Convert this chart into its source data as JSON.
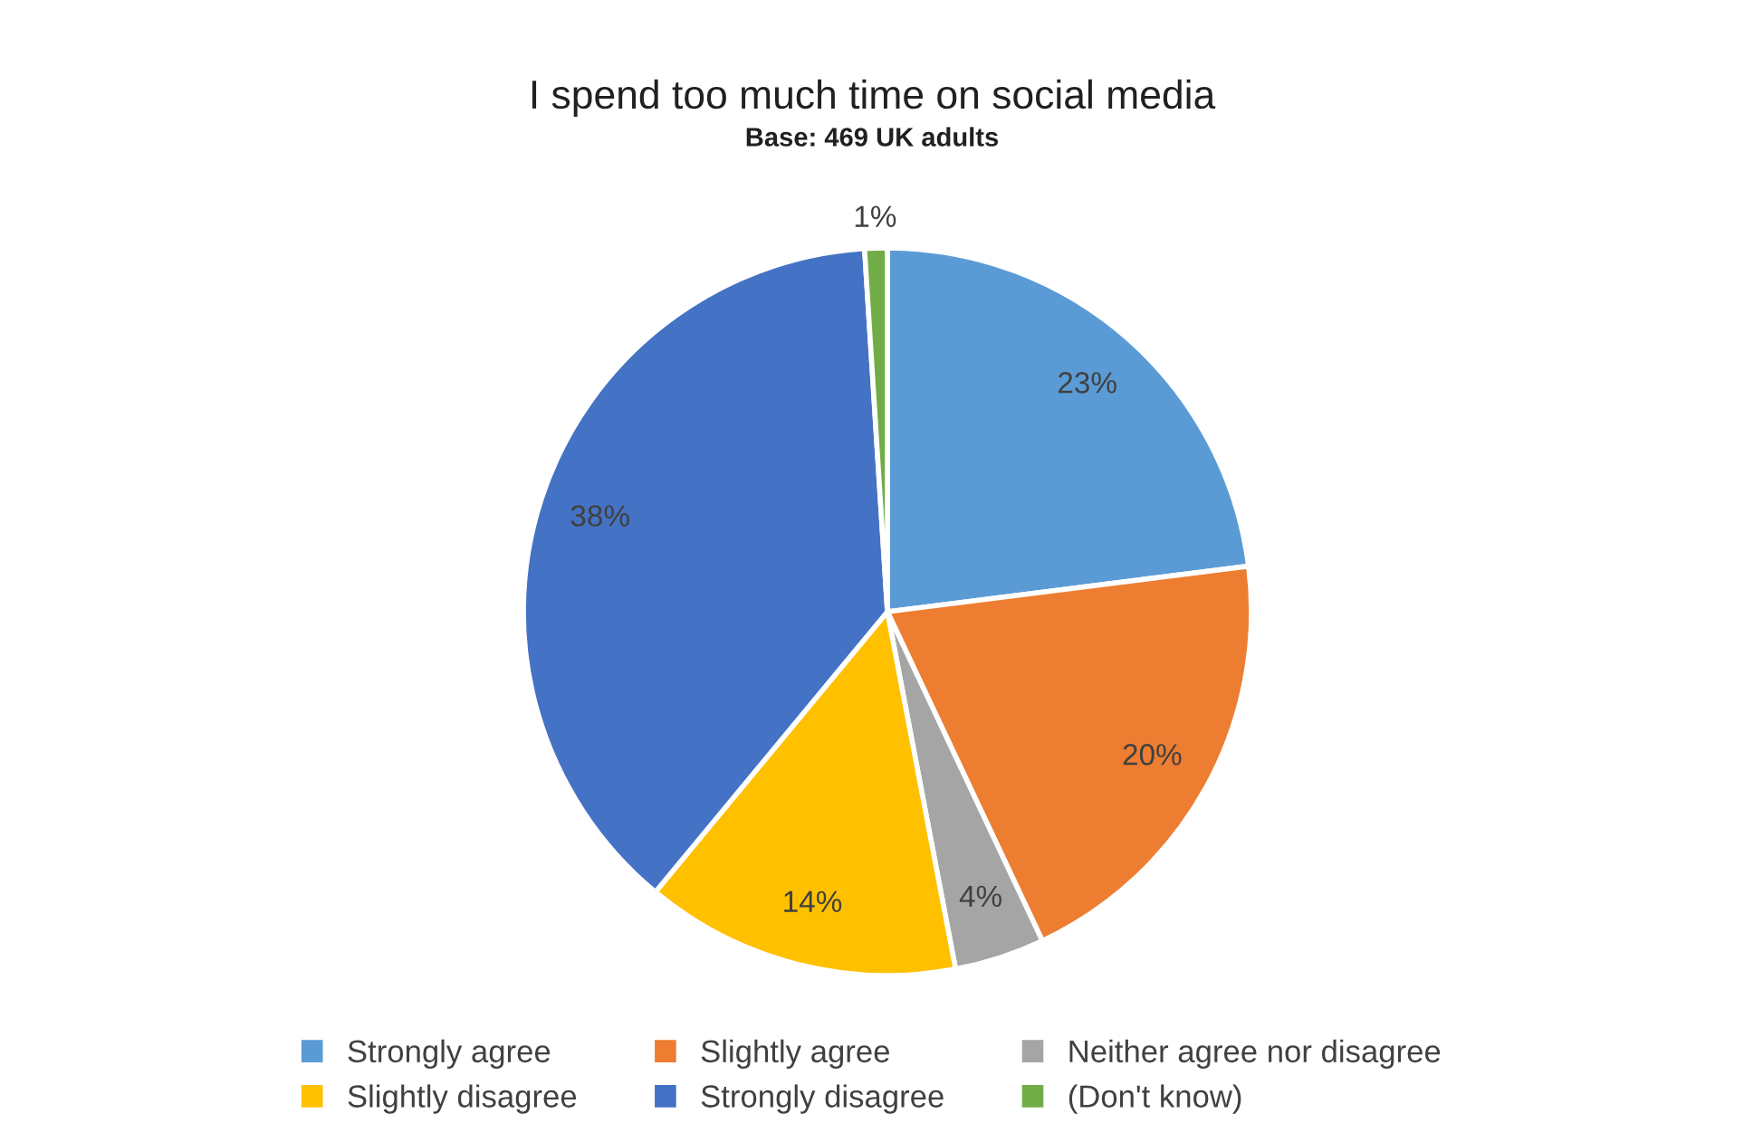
{
  "chart_data": {
    "type": "pie",
    "title": "I spend too much time on social media",
    "subtitle": "Base: 469 UK adults",
    "categories": [
      "Strongly agree",
      "Slightly agree",
      "Neither agree nor disagree",
      "Slightly disagree",
      "Strongly disagree",
      "(Don't know)"
    ],
    "values": [
      23,
      20,
      4,
      14,
      38,
      1
    ],
    "value_labels": [
      "23%",
      "20%",
      "4%",
      "14%",
      "38%",
      "1%"
    ],
    "colors": [
      "#5b9bd5",
      "#ed7d31",
      "#a5a5a5",
      "#ffc000",
      "#4472c4",
      "#70ad47"
    ],
    "legend": "bottom"
  }
}
